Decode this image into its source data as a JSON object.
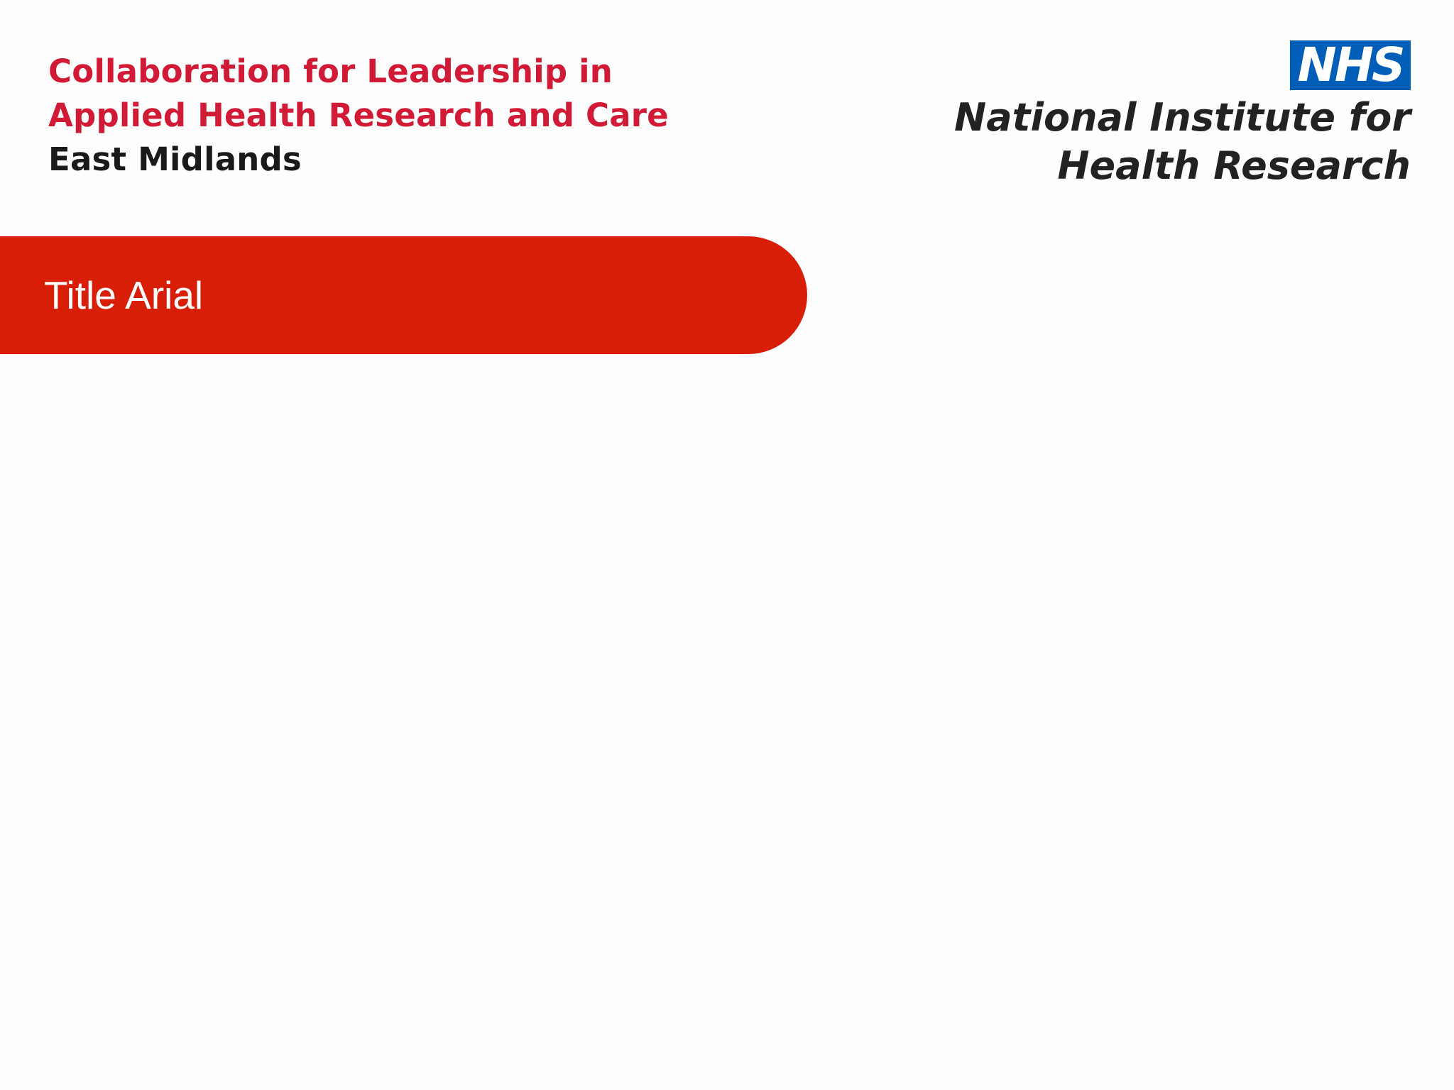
{
  "clahrc_logo": {
    "line1": "Collaboration for Leadership in",
    "line2": "Applied Health Research and Care",
    "line3": "East Midlands",
    "accent_color": "#d11a35"
  },
  "nhs_logo": {
    "badge": "NHS",
    "line1": "National Institute for",
    "line2": "Health Research",
    "badge_color": "#005eb8"
  },
  "slide": {
    "title": "Title Arial",
    "title_bar_color": "#d91e07"
  }
}
